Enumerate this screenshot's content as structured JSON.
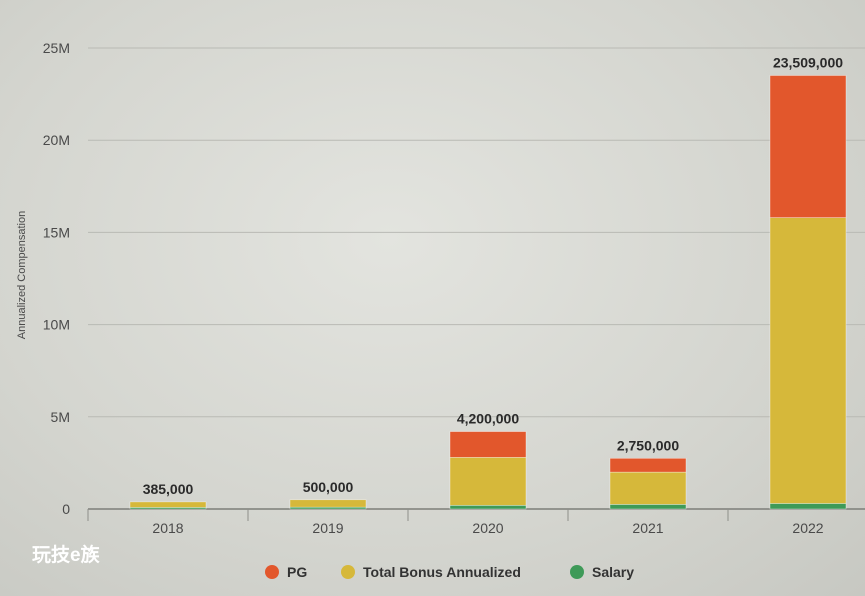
{
  "chart_data": {
    "type": "bar",
    "stacked": true,
    "ylabel": "Annualized Compensation",
    "ylim": [
      0,
      25000000
    ],
    "yticks": [
      "0",
      "5M",
      "10M",
      "15M",
      "20M",
      "25M"
    ],
    "yticks_values": [
      0,
      5000000,
      10000000,
      15000000,
      20000000,
      25000000
    ],
    "grid": true,
    "legend_position": "bottom",
    "categories": [
      "2018",
      "2019",
      "2020",
      "2021",
      "2022"
    ],
    "totals_labels": [
      "385,000",
      "500,000",
      "4,200,000",
      "2,750,000",
      "23,509,000"
    ],
    "series": [
      {
        "name": "Salary",
        "color": "#3e9a58",
        "values": [
          85000,
          100000,
          200000,
          250000,
          300000
        ]
      },
      {
        "name": "Total Bonus Annualized",
        "color": "#d6b83a",
        "values": [
          300000,
          400000,
          2600000,
          1750000,
          15500000
        ]
      },
      {
        "name": "PG",
        "color": "#e2572c",
        "values": [
          0,
          0,
          1400000,
          750000,
          7709000
        ]
      }
    ],
    "legend": [
      "PG",
      "Total Bonus Annualized",
      "Salary"
    ]
  },
  "watermark": {
    "text": "玩技e族"
  }
}
